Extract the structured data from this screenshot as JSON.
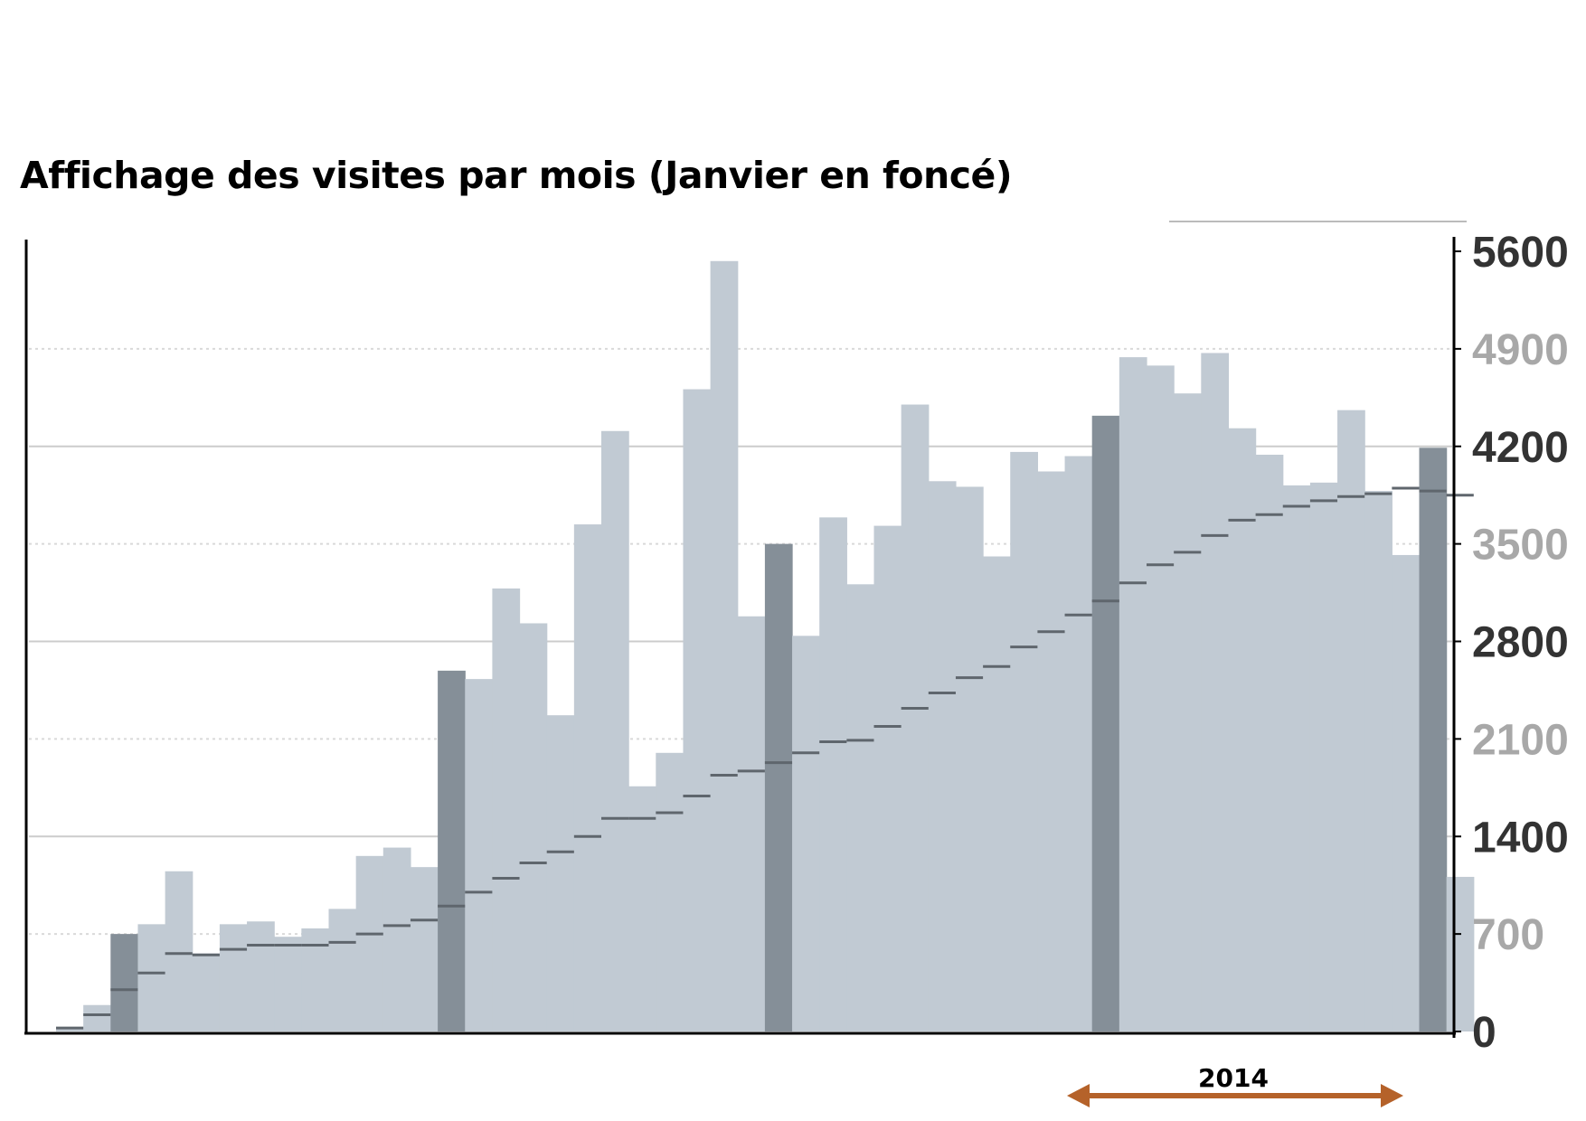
{
  "chart_data": {
    "type": "bar",
    "title": "Affichage des visites par mois (Janvier en foncé)",
    "ylim": [
      0,
      5600
    ],
    "yticks": [
      0,
      700,
      1400,
      2100,
      2800,
      3500,
      4200,
      4900,
      5600
    ],
    "ytick_labels": [
      "0",
      "700",
      "1400",
      "2100",
      "2800",
      "3500",
      "4200",
      "4900",
      "5600"
    ],
    "y_axis_side": "right",
    "grid": true,
    "legend": "none",
    "colors": {
      "bar": "#c1cad3",
      "january_bar": "#858f98",
      "average_line": "#5f666d",
      "axis": "#000000",
      "gridline_solid": "#cccccc",
      "gridline_dotted": "#d9d9d9",
      "tick_dark": "#333333",
      "tick_light": "#a8a8a8",
      "annotation_arrow": "#b5622a"
    },
    "series": [
      {
        "values": [
          30,
          190,
          700,
          770,
          1150,
          560,
          770,
          790,
          680,
          740,
          880,
          1260,
          1320,
          1180,
          2590,
          2530,
          3180,
          2930,
          2270,
          3640,
          4310,
          1760,
          2000,
          4610,
          5530,
          2980,
          3500,
          2840,
          3690,
          3210,
          3630,
          4500,
          3950,
          3910,
          3410,
          4160,
          4020,
          4130,
          4420,
          4840,
          4780,
          4580,
          4870,
          4330,
          4140,
          3920,
          3940,
          4460,
          3880,
          3420,
          4190,
          1110
        ],
        "january_indices": [
          2,
          14,
          26,
          38,
          50
        ]
      },
      {
        "values": [
          25,
          120,
          300,
          420,
          560,
          550,
          590,
          620,
          620,
          620,
          640,
          700,
          760,
          800,
          900,
          1000,
          1100,
          1210,
          1290,
          1400,
          1530,
          1530,
          1570,
          1690,
          1840,
          1870,
          1930,
          2000,
          2080,
          2090,
          2190,
          2320,
          2430,
          2540,
          2620,
          2760,
          2870,
          2990,
          3090,
          3220,
          3350,
          3440,
          3560,
          3670,
          3710,
          3770,
          3810,
          3840,
          3860,
          3900,
          3880,
          3850
        ]
      }
    ],
    "annotations": [
      {
        "text": "2014",
        "start_index": 38,
        "end_index": 50
      }
    ]
  }
}
